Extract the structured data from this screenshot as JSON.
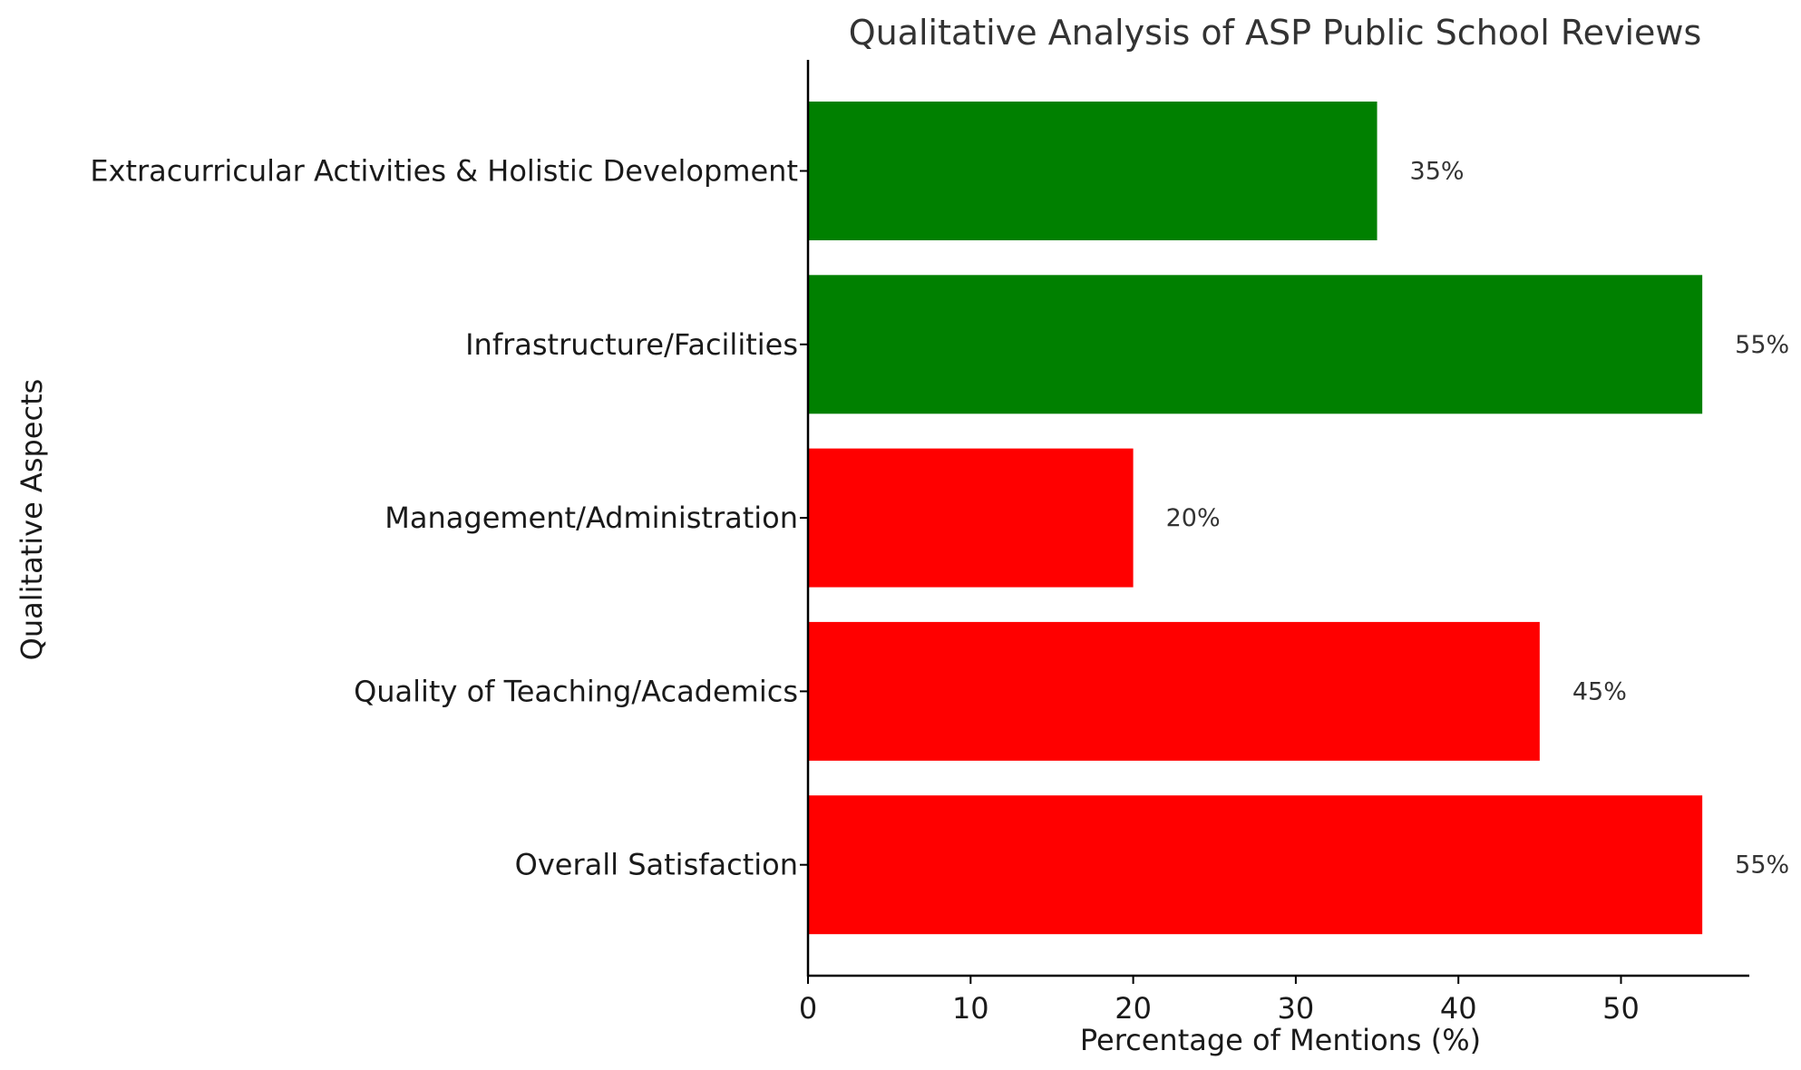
{
  "chart_data": {
    "type": "bar",
    "orientation": "horizontal",
    "title": "Qualitative Analysis of ASP Public School Reviews",
    "xlabel": "Percentage of Mentions (%)",
    "ylabel": "Qualitative Aspects",
    "categories": [
      "Overall Satisfaction",
      "Quality of Teaching/Academics",
      "Management/Administration",
      "Infrastructure/Facilities",
      "Extracurricular Activities & Holistic Development"
    ],
    "values": [
      55,
      45,
      20,
      55,
      35
    ],
    "value_labels": [
      "55%",
      "45%",
      "20%",
      "55%",
      "35%"
    ],
    "bar_colors": [
      "#ff0000",
      "#ff0000",
      "#ff0000",
      "#008000",
      "#008000"
    ],
    "xlim": [
      0,
      58
    ],
    "xticks": [
      0,
      10,
      20,
      30,
      40,
      50
    ],
    "xtick_labels": [
      "0",
      "10",
      "20",
      "30",
      "40",
      "50"
    ],
    "grid": false,
    "legend": "none"
  }
}
